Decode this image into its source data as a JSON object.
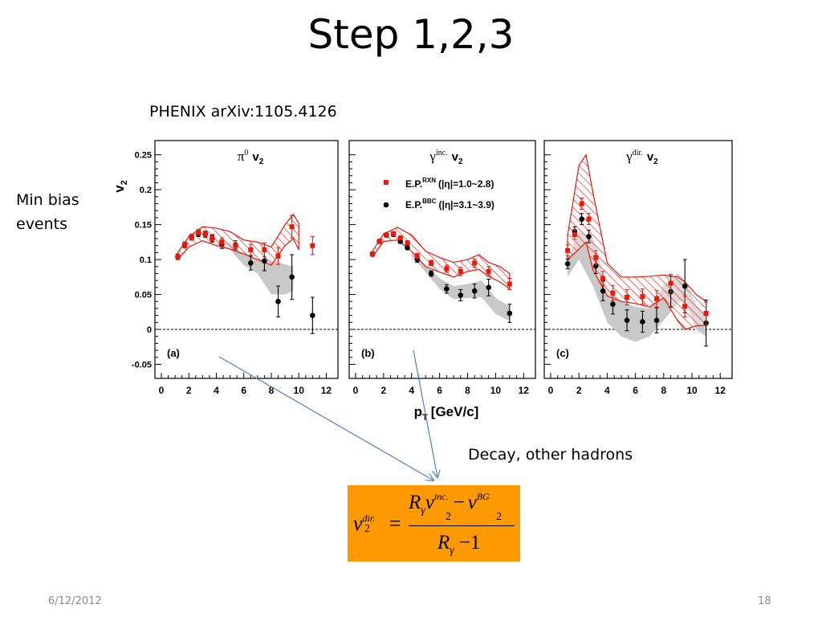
{
  "slide": {
    "title": "Step 1,2,3",
    "source": "PHENIX arXiv:1105.4126",
    "side_label_line1": "Min bias",
    "side_label_line2": "events",
    "decay_label": "Decay, other hadrons",
    "date": "6/12/2012",
    "page_number": "18"
  },
  "formula": {
    "lhs_base": "v",
    "lhs_sub": "2",
    "lhs_sup": "dir.",
    "equals": "=",
    "num_R": "R",
    "num_R_sub": "γ",
    "num_v": "v",
    "num_v_sub": "2",
    "num_v_sup": "inc.",
    "minus": "−",
    "num_bg_v": "v",
    "num_bg_sub": "2",
    "num_bg_sup": "BG",
    "den_R": "R",
    "den_R_sub": "γ",
    "den_minus_one": "−1"
  },
  "colors": {
    "red": "#e8190c",
    "red_band": "#e8190c",
    "gray_band": "#c8c8c8",
    "black": "#000000",
    "arrow": "#4f81bd",
    "formula_bg": "#ff9900"
  },
  "chart_data": {
    "type": "scatter",
    "ylabel": "v2",
    "xlabel": "pT [GeV/c]",
    "xlim": [
      0,
      12.5
    ],
    "ylim": [
      -0.06,
      0.26
    ],
    "y_ticks": [
      "0.25",
      "0.2",
      "0.15",
      "0.1",
      "0.05",
      "0",
      "-0.05"
    ],
    "y_tick_values": [
      0.25,
      0.2,
      0.15,
      0.1,
      0.05,
      0,
      -0.05
    ],
    "x_ticks": [
      "0",
      "2",
      "4",
      "6",
      "8",
      "10",
      "12"
    ],
    "x_tick_values": [
      0,
      2,
      4,
      6,
      8,
      10,
      12
    ],
    "zero_line": true,
    "legend": {
      "red_label": "E.P.",
      "red_sup": "RXN",
      "red_range": "(|η|=1.0~2.8)",
      "black_label": "E.P.",
      "black_sup": "BBC",
      "black_range": "(|η|=3.1~3.9)"
    },
    "panels": [
      {
        "tag": "(a)",
        "title_main": "π",
        "title_sup": "0",
        "title_v": "v",
        "title_v_sub": "2",
        "series": [
          {
            "marker": "square",
            "color": "red",
            "points": [
              [
                1.2,
                0.104,
                0.004
              ],
              [
                1.7,
                0.121,
                0.004
              ],
              [
                2.2,
                0.132,
                0.004
              ],
              [
                2.7,
                0.139,
                0.004
              ],
              [
                3.2,
                0.137,
                0.004
              ],
              [
                3.7,
                0.131,
                0.005
              ],
              [
                4.4,
                0.125,
                0.006
              ],
              [
                5.4,
                0.12,
                0.007
              ],
              [
                6.5,
                0.114,
                0.008
              ],
              [
                7.5,
                0.114,
                0.01
              ],
              [
                8.5,
                0.105,
                0.012
              ],
              [
                9.5,
                0.147,
                0.016
              ],
              [
                11,
                0.12,
                0.013
              ]
            ]
          },
          {
            "marker": "circle",
            "color": "black",
            "points": [
              [
                1.2,
                0.104,
                0.004
              ],
              [
                1.7,
                0.121,
                0.004
              ],
              [
                2.2,
                0.132,
                0.004
              ],
              [
                2.7,
                0.137,
                0.004
              ],
              [
                3.2,
                0.136,
                0.004
              ],
              [
                3.7,
                0.13,
                0.005
              ],
              [
                4.4,
                0.122,
                0.006
              ],
              [
                5.4,
                0.121,
                0.006
              ],
              [
                6.5,
                0.095,
                0.01
              ],
              [
                7.5,
                0.098,
                0.014
              ],
              [
                8.5,
                0.04,
                0.022
              ],
              [
                9.5,
                0.075,
                0.032
              ],
              [
                11,
                0.02,
                0.026
              ]
            ]
          }
        ],
        "red_band": {
          "upper": [
            [
              1.2,
              0.11
            ],
            [
              2,
              0.133
            ],
            [
              3,
              0.147
            ],
            [
              4,
              0.145
            ],
            [
              5,
              0.14
            ],
            [
              6,
              0.128
            ],
            [
              7,
              0.125
            ],
            [
              8,
              0.118
            ],
            [
              9,
              0.15
            ],
            [
              9.6,
              0.165
            ],
            [
              10,
              0.152
            ]
          ],
          "lower": [
            [
              1.2,
              0.1
            ],
            [
              2,
              0.118
            ],
            [
              3,
              0.127
            ],
            [
              4,
              0.12
            ],
            [
              5,
              0.115
            ],
            [
              6,
              0.108
            ],
            [
              7,
              0.1
            ],
            [
              8,
              0.092
            ],
            [
              9,
              0.12
            ],
            [
              9.6,
              0.13
            ],
            [
              10,
              0.114
            ]
          ]
        },
        "gray_band": {
          "upper": [
            [
              4,
              0.128
            ],
            [
              5,
              0.124
            ],
            [
              6,
              0.107
            ],
            [
              7,
              0.1
            ],
            [
              8,
              0.1
            ],
            [
              9,
              0.093
            ],
            [
              9.6,
              0.09
            ]
          ],
          "lower": [
            [
              4,
              0.12
            ],
            [
              5,
              0.114
            ],
            [
              6,
              0.092
            ],
            [
              7,
              0.08
            ],
            [
              8,
              0.05
            ],
            [
              9,
              0.05
            ],
            [
              9.6,
              0.055
            ]
          ]
        }
      },
      {
        "tag": "(b)",
        "title_main": "γ",
        "title_sup": "inc.",
        "title_v": "v",
        "title_v_sub": "2",
        "series": [
          {
            "marker": "square",
            "color": "red",
            "points": [
              [
                1.2,
                0.108,
                0.003
              ],
              [
                1.7,
                0.126,
                0.003
              ],
              [
                2.2,
                0.135,
                0.003
              ],
              [
                2.7,
                0.137,
                0.003
              ],
              [
                3.2,
                0.131,
                0.003
              ],
              [
                3.7,
                0.124,
                0.003
              ],
              [
                4.4,
                0.105,
                0.004
              ],
              [
                5.4,
                0.095,
                0.004
              ],
              [
                6.5,
                0.087,
                0.005
              ],
              [
                7.5,
                0.083,
                0.006
              ],
              [
                8.5,
                0.095,
                0.006
              ],
              [
                9.5,
                0.083,
                0.007
              ],
              [
                11,
                0.065,
                0.008
              ]
            ]
          },
          {
            "marker": "circle",
            "color": "black",
            "points": [
              [
                1.2,
                0.108,
                0.003
              ],
              [
                1.7,
                0.126,
                0.003
              ],
              [
                2.2,
                0.135,
                0.003
              ],
              [
                2.7,
                0.136,
                0.003
              ],
              [
                3.2,
                0.126,
                0.003
              ],
              [
                3.7,
                0.117,
                0.003
              ],
              [
                4.4,
                0.1,
                0.004
              ],
              [
                5.4,
                0.08,
                0.004
              ],
              [
                6.5,
                0.058,
                0.006
              ],
              [
                7.5,
                0.049,
                0.008
              ],
              [
                8.5,
                0.055,
                0.01
              ],
              [
                9.5,
                0.06,
                0.012
              ],
              [
                11,
                0.023,
                0.013
              ]
            ]
          }
        ],
        "red_band": {
          "upper": [
            [
              1.2,
              0.112
            ],
            [
              2,
              0.137
            ],
            [
              3,
              0.146
            ],
            [
              4,
              0.135
            ],
            [
              5,
              0.112
            ],
            [
              6,
              0.103
            ],
            [
              7,
              0.096
            ],
            [
              8,
              0.1
            ],
            [
              8.8,
              0.107
            ],
            [
              9.5,
              0.096
            ],
            [
              10.3,
              0.09
            ],
            [
              11,
              0.08
            ]
          ],
          "lower": [
            [
              1.2,
              0.104
            ],
            [
              2,
              0.126
            ],
            [
              3,
              0.128
            ],
            [
              4,
              0.112
            ],
            [
              5,
              0.09
            ],
            [
              6,
              0.082
            ],
            [
              7,
              0.075
            ],
            [
              8,
              0.083
            ],
            [
              8.8,
              0.086
            ],
            [
              9.5,
              0.076
            ],
            [
              10.3,
              0.068
            ],
            [
              11,
              0.058
            ]
          ]
        },
        "gray_band": {
          "upper": [
            [
              4,
              0.112
            ],
            [
              5,
              0.092
            ],
            [
              6,
              0.073
            ],
            [
              7,
              0.062
            ],
            [
              8,
              0.065
            ],
            [
              9,
              0.07
            ],
            [
              10,
              0.045
            ],
            [
              11,
              0.033
            ]
          ],
          "lower": [
            [
              4,
              0.105
            ],
            [
              5,
              0.082
            ],
            [
              6,
              0.058
            ],
            [
              7,
              0.043
            ],
            [
              8,
              0.045
            ],
            [
              9,
              0.046
            ],
            [
              10,
              0.022
            ],
            [
              11,
              0.012
            ]
          ]
        }
      },
      {
        "tag": "(c)",
        "title_main": "γ",
        "title_sup": "dir.",
        "title_v": "v",
        "title_v_sub": "2",
        "series": [
          {
            "marker": "square",
            "color": "red",
            "points": [
              [
                1.2,
                0.113,
                0.008
              ],
              [
                1.7,
                0.136,
                0.007
              ],
              [
                2.2,
                0.18,
                0.008
              ],
              [
                2.7,
                0.158,
                0.008
              ],
              [
                3.2,
                0.103,
                0.01
              ],
              [
                3.7,
                0.073,
                0.01
              ],
              [
                4.4,
                0.052,
                0.011
              ],
              [
                5.4,
                0.046,
                0.011
              ],
              [
                6.5,
                0.047,
                0.011
              ],
              [
                7.5,
                0.044,
                0.012
              ],
              [
                8.5,
                0.066,
                0.013
              ],
              [
                9.5,
                0.033,
                0.015
              ],
              [
                11,
                0.023,
                0.016
              ]
            ]
          },
          {
            "marker": "circle",
            "color": "black",
            "points": [
              [
                1.2,
                0.094,
                0.007
              ],
              [
                1.7,
                0.14,
                0.007
              ],
              [
                2.2,
                0.158,
                0.008
              ],
              [
                2.7,
                0.133,
                0.009
              ],
              [
                3.2,
                0.091,
                0.011
              ],
              [
                3.7,
                0.055,
                0.014
              ],
              [
                4.4,
                0.036,
                0.014
              ],
              [
                5.4,
                0.013,
                0.015
              ],
              [
                6.5,
                0.011,
                0.015
              ],
              [
                7.5,
                0.013,
                0.018
              ],
              [
                8.5,
                0.054,
                0.022
              ],
              [
                9.5,
                0.062,
                0.038
              ],
              [
                11,
                0.009,
                0.033
              ]
            ]
          }
        ],
        "red_band": {
          "upper": [
            [
              1.2,
              0.135
            ],
            [
              2,
              0.235
            ],
            [
              2.5,
              0.25
            ],
            [
              3,
              0.195
            ],
            [
              4,
              0.095
            ],
            [
              5,
              0.075
            ],
            [
              6,
              0.075
            ],
            [
              7,
              0.076
            ],
            [
              8,
              0.078
            ],
            [
              9,
              0.075
            ],
            [
              9.5,
              0.068
            ],
            [
              10.3,
              0.05
            ],
            [
              11,
              0.04
            ]
          ],
          "lower": [
            [
              1.2,
              0.1
            ],
            [
              2,
              0.115
            ],
            [
              2.5,
              0.125
            ],
            [
              3,
              0.085
            ],
            [
              4,
              0.048
            ],
            [
              5,
              0.04
            ],
            [
              6,
              0.037
            ],
            [
              7,
              0.032
            ],
            [
              8,
              0.045
            ],
            [
              9,
              0.012
            ],
            [
              9.5,
              0.0
            ],
            [
              10.3,
              0.005
            ],
            [
              11,
              0.006
            ]
          ]
        },
        "gray_band": {
          "upper": [
            [
              1.2,
              0.1
            ],
            [
              2,
              0.14
            ],
            [
              3,
              0.13
            ],
            [
              4,
              0.06
            ],
            [
              5,
              0.04
            ],
            [
              6,
              0.032
            ],
            [
              7,
              0.03
            ],
            [
              8,
              0.063
            ],
            [
              9,
              0.08
            ],
            [
              9.5,
              0.07
            ],
            [
              10.3,
              0.035
            ],
            [
              11,
              0.02
            ]
          ],
          "lower": [
            [
              1.2,
              0.075
            ],
            [
              2,
              0.1
            ],
            [
              3,
              0.062
            ],
            [
              4,
              0.01
            ],
            [
              5,
              -0.01
            ],
            [
              6,
              -0.018
            ],
            [
              7,
              -0.01
            ],
            [
              8,
              0.013
            ],
            [
              9,
              0.038
            ],
            [
              9.5,
              0.042
            ],
            [
              10.3,
              0.0
            ],
            [
              11,
              -0.01
            ]
          ]
        }
      }
    ]
  }
}
